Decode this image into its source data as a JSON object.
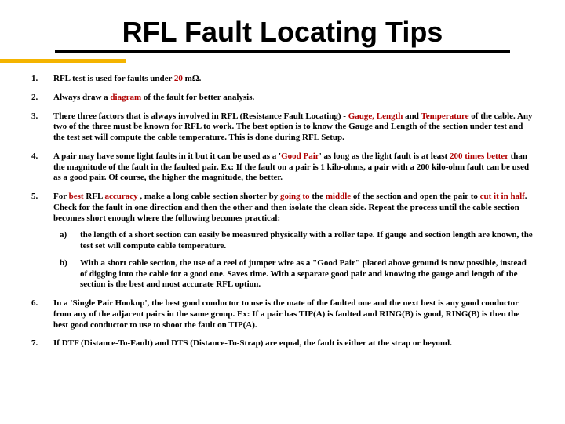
{
  "title": "RFL Fault Locating Tips",
  "accent_color": "#f4b400",
  "highlight_color": "#b00000",
  "items": [
    {
      "segments": [
        {
          "t": "RFL test is used for faults under "
        },
        {
          "t": "20",
          "hl": true
        },
        {
          "t": " mΩ."
        }
      ]
    },
    {
      "segments": [
        {
          "t": "Always draw a "
        },
        {
          "t": "diagram",
          "hl": true
        },
        {
          "t": " of the fault for better analysis."
        }
      ]
    },
    {
      "segments": [
        {
          "t": "There three factors that is always involved in RFL (Resistance Fault Locating) - "
        },
        {
          "t": "Gauge, Length",
          "hl": true
        },
        {
          "t": " and "
        },
        {
          "t": "Temperature",
          "hl": true
        },
        {
          "t": " of the cable. Any two of the three must be known for RFL to work. The best option is to know the Gauge and Length of the section under test and the test set will compute the cable temperature. This is done during RFL Setup."
        }
      ]
    },
    {
      "segments": [
        {
          "t": "A pair may have some light faults in it but it can be used as a '"
        },
        {
          "t": "Good Pair",
          "hl": true
        },
        {
          "t": "' as long as the light fault is at least "
        },
        {
          "t": "200 times better",
          "hl": true
        },
        {
          "t": " than the magnitude of the fault in the faulted pair. Ex: If the fault on a pair is 1 kilo-ohms, a pair with a 200 kilo-ohm fault can be used as a good pair. Of course, the higher the magnitude, the better."
        }
      ]
    },
    {
      "segments": [
        {
          "t": "For "
        },
        {
          "t": "best",
          "hl": true
        },
        {
          "t": " RFL "
        },
        {
          "t": "accuracy",
          "hl": true
        },
        {
          "t": " , make a long cable section shorter by "
        },
        {
          "t": "going to",
          "hl": true
        },
        {
          "t": " the "
        },
        {
          "t": "middle",
          "hl": true
        },
        {
          "t": " of the section and open the pair to "
        },
        {
          "t": "cut it in half",
          "hl": true
        },
        {
          "t": ". Check for the fault in one direction and then the other and then isolate the clean side. Repeat the process until the cable section becomes short enough where the following becomes practical:"
        }
      ],
      "sub": [
        {
          "marker": "a)",
          "segments": [
            {
              "t": "the length of a short section can easily be measured physically with a roller tape. If gauge and section length  are known, the test set will compute cable temperature."
            }
          ]
        },
        {
          "marker": "b)",
          "segments": [
            {
              "t": "With a short cable section, the use of a reel of jumper wire as a \"Good Pair\" placed above ground is now possible, instead of digging into the cable for a good one. Saves time. With a separate good pair and knowing the gauge and length of the section is the best and most accurate RFL option."
            }
          ]
        }
      ]
    },
    {
      "segments": [
        {
          "t": "In a 'Single Pair Hookup', the best good conductor to use is the mate of the faulted one and the next best is any good conductor from any of the adjacent pairs in the same group. Ex: If a pair has TIP(A) is faulted and RING(B) is good, RING(B) is then the best good conductor to use to shoot the fault on TIP(A)."
        }
      ]
    },
    {
      "segments": [
        {
          "t": "If DTF (Distance-To-Fault) and DTS (Distance-To-Strap) are equal, the fault is either at the strap or beyond."
        }
      ]
    }
  ]
}
